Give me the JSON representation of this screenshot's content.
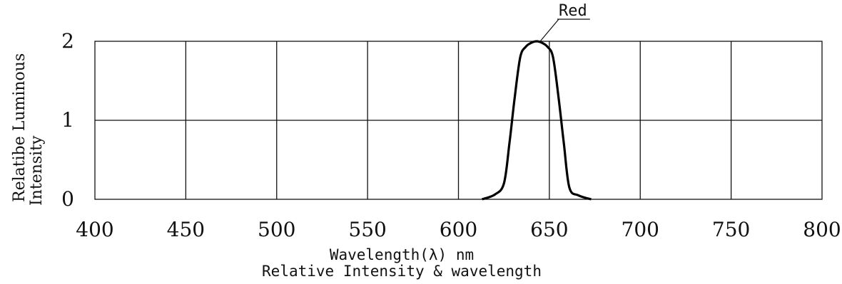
{
  "chart_data": {
    "type": "line",
    "title": "",
    "xlabel": "Wavelength(λ) nm",
    "caption": "Relative  Intensity & wavelength",
    "ylabel_lines": [
      "Relatibe  Luminous",
      "Intensity"
    ],
    "xlim": [
      400,
      800
    ],
    "ylim": [
      0,
      2
    ],
    "x_ticks": [
      "400",
      "450",
      "500",
      "550",
      "600",
      "650",
      "700",
      "750",
      "800"
    ],
    "y_ticks": [
      "0",
      "1",
      "2"
    ],
    "grid": true,
    "series": [
      {
        "name": "Red",
        "color": "#000000",
        "x": [
          613,
          620,
          625,
          628,
          631,
          634,
          637,
          640,
          643,
          646,
          649,
          652,
          655,
          658,
          661,
          666,
          673
        ],
        "y": [
          0.0,
          0.06,
          0.2,
          0.7,
          1.3,
          1.8,
          1.93,
          1.98,
          2.0,
          1.98,
          1.93,
          1.8,
          1.3,
          0.7,
          0.15,
          0.05,
          0.0
        ]
      }
    ]
  }
}
